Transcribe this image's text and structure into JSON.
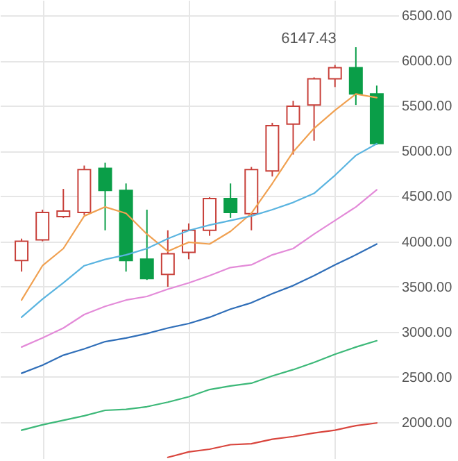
{
  "chart_data": {
    "type": "candlestick",
    "categories": [
      null,
      null,
      null,
      null,
      null,
      null,
      null,
      null,
      null,
      null,
      null,
      null,
      null,
      null,
      null,
      null,
      null,
      null
    ],
    "ohlc": [
      [
        3787,
        4030,
        3665,
        4000
      ],
      [
        4015,
        4350,
        4000,
        4320
      ],
      [
        4274,
        4580,
        4259,
        4335
      ],
      [
        4320,
        4838,
        4290,
        4793
      ],
      [
        4808,
        4869,
        4122,
        4564
      ],
      [
        4564,
        4640,
        3665,
        3787
      ],
      [
        3802,
        4350,
        3573,
        3588
      ],
      [
        3634,
        4122,
        3497,
        3863
      ],
      [
        3878,
        4198,
        3802,
        4122
      ],
      [
        4122,
        4488,
        4061,
        4473
      ],
      [
        4473,
        4640,
        4259,
        4320
      ],
      [
        4305,
        4823,
        4122,
        4793
      ],
      [
        4778,
        5311,
        4717,
        5280
      ],
      [
        5296,
        5555,
        4960,
        5494
      ],
      [
        5509,
        5814,
        5113,
        5799
      ],
      [
        5799,
        5951,
        5707,
        5921
      ],
      [
        5921,
        6147.43,
        5509,
        5631
      ],
      [
        5631,
        5723,
        5067,
        5082
      ]
    ],
    "colors": [
      "#c8403a",
      "#c8403a",
      "#c8403a",
      "#c8403a",
      "#0a9e48",
      "#0a9e48",
      "#0a9e48",
      "#c8403a",
      "#c8403a",
      "#c8403a",
      "#0a9e48",
      "#c8403a",
      "#c8403a",
      "#c8403a",
      "#c8403a",
      "#c8403a",
      "#0a9e48",
      "#0a9e48"
    ],
    "series": [
      {
        "type": "line",
        "color": "#f0a050",
        "values": [
          3350,
          3730,
          3920,
          4280,
          4380,
          4310,
          4080,
          3890,
          3990,
          3970,
          4110,
          4310,
          4640,
          4990,
          5250,
          5450,
          5630,
          5590
        ]
      },
      {
        "type": "line",
        "color": "#5ab4e0",
        "values": [
          3160,
          3360,
          3540,
          3730,
          3800,
          3850,
          3920,
          4030,
          4120,
          4180,
          4230,
          4280,
          4350,
          4430,
          4530,
          4730,
          4950,
          5080
        ]
      },
      {
        "type": "line",
        "color": "#e38ad8",
        "values": [
          2830,
          2930,
          3040,
          3190,
          3280,
          3350,
          3390,
          3470,
          3540,
          3620,
          3710,
          3740,
          3850,
          3920,
          4080,
          4230,
          4380,
          4570
        ]
      },
      {
        "type": "line",
        "color": "#2f6eb8",
        "values": [
          2540,
          2630,
          2740,
          2810,
          2890,
          2930,
          2980,
          3040,
          3090,
          3160,
          3250,
          3320,
          3420,
          3510,
          3620,
          3740,
          3850,
          3970
        ]
      },
      {
        "type": "line",
        "color": "#3cb878",
        "values": [
          1910,
          1970,
          2020,
          2070,
          2130,
          2140,
          2170,
          2220,
          2280,
          2360,
          2400,
          2430,
          2510,
          2580,
          2660,
          2750,
          2830,
          2900
        ]
      },
      {
        "type": "line",
        "color": "#d9453d",
        "values": [
          null,
          null,
          null,
          null,
          null,
          null,
          null,
          1610,
          1670,
          1700,
          1750,
          1760,
          1810,
          1840,
          1880,
          1910,
          1960,
          1990
        ]
      }
    ],
    "ylim": [
      1600,
      6670
    ],
    "yticks": [
      {
        "value": 2000,
        "label": "2000.00"
      },
      {
        "value": 2500,
        "label": "2500.00"
      },
      {
        "value": 3000,
        "label": "3000.00"
      },
      {
        "value": 3500,
        "label": "3500.00"
      },
      {
        "value": 4000,
        "label": "4000.00"
      },
      {
        "value": 4500,
        "label": "4500.00"
      },
      {
        "value": 5000,
        "label": "5000.00"
      },
      {
        "value": 5500,
        "label": "5500.00"
      },
      {
        "value": 6000,
        "label": "6000.00"
      },
      {
        "value": 6500,
        "label": "6500.00"
      }
    ],
    "annotations": [
      "6147.43"
    ],
    "grid": true,
    "tick_labels": "y"
  }
}
